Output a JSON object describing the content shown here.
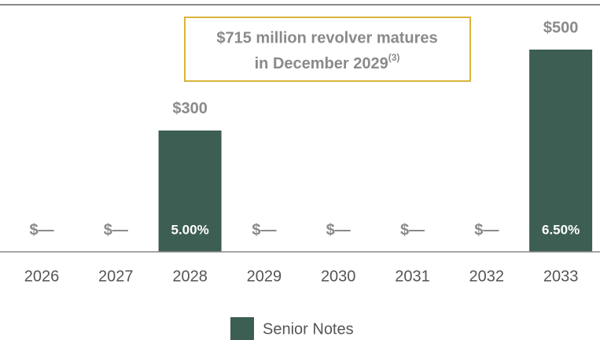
{
  "chart_data": {
    "type": "bar",
    "categories": [
      "2026",
      "2027",
      "2028",
      "2029",
      "2030",
      "2031",
      "2032",
      "2033"
    ],
    "series": [
      {
        "name": "Senior Notes",
        "color": "#3d5e52",
        "values": [
          0,
          0,
          300,
          0,
          0,
          0,
          0,
          500
        ],
        "value_labels": [
          "$—",
          "$—",
          "$300",
          "$—",
          "$—",
          "$—",
          "$—",
          "$500"
        ],
        "rates": [
          null,
          null,
          "5.00%",
          null,
          null,
          null,
          null,
          "6.50%"
        ]
      }
    ],
    "annotation": {
      "lines": [
        "$715 million revolver matures",
        "in December 2029"
      ],
      "superscript": "(3)",
      "border_color": "#d9b43a"
    }
  }
}
